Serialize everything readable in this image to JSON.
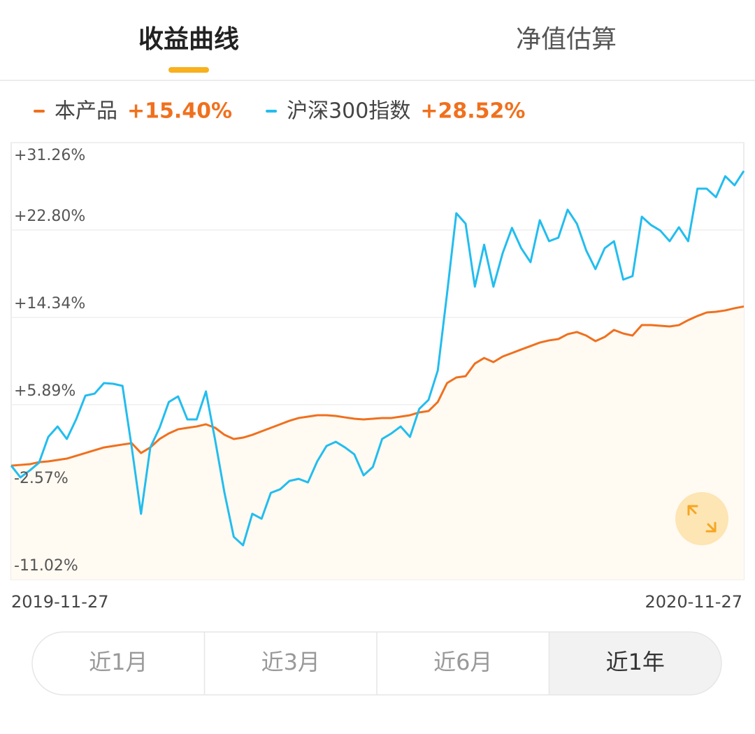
{
  "tabs": [
    {
      "label": "收益曲线",
      "active": true
    },
    {
      "label": "净值估算",
      "active": false
    }
  ],
  "chart_data": {
    "type": "line",
    "categories": [
      "2019-11-27",
      null,
      null,
      null,
      null,
      null,
      null,
      null,
      null,
      null,
      null,
      null,
      null,
      null,
      null,
      null,
      null,
      null,
      null,
      null,
      null,
      null,
      null,
      null,
      null,
      null,
      null,
      null,
      null,
      null,
      null,
      null,
      null,
      null,
      null,
      null,
      null,
      null,
      null,
      null,
      null,
      null,
      null,
      null,
      null,
      null,
      null,
      null,
      null,
      null,
      null,
      null,
      null,
      null,
      null,
      null,
      null,
      null,
      null,
      null,
      null,
      null,
      null,
      null,
      null,
      null,
      null,
      null,
      null,
      null,
      null,
      null,
      null,
      null,
      null,
      null,
      null,
      null,
      null,
      "2020-11-27"
    ],
    "series": [
      {
        "name": "本产品",
        "color": "#f0701e",
        "fill": "#fffaf2",
        "change_label": "+15.40%",
        "values": [
          0.0,
          0.07,
          0.14,
          0.34,
          0.41,
          0.55,
          0.68,
          0.95,
          1.22,
          1.49,
          1.76,
          1.9,
          2.04,
          2.17,
          1.22,
          1.76,
          2.58,
          3.12,
          3.52,
          3.66,
          3.79,
          4.0,
          3.66,
          2.98,
          2.58,
          2.71,
          2.98,
          3.32,
          3.66,
          4.0,
          4.34,
          4.61,
          4.74,
          4.88,
          4.88,
          4.81,
          4.67,
          4.54,
          4.47,
          4.54,
          4.61,
          4.61,
          4.74,
          4.88,
          5.15,
          5.28,
          6.16,
          7.99,
          8.53,
          8.66,
          9.88,
          10.42,
          10.02,
          10.56,
          10.9,
          11.24,
          11.57,
          11.91,
          12.12,
          12.25,
          12.72,
          12.93,
          12.59,
          12.05,
          12.45,
          13.13,
          12.79,
          12.59,
          13.6,
          13.6,
          13.54,
          13.47,
          13.6,
          14.08,
          14.48,
          14.82,
          14.89,
          15.02,
          15.23,
          15.4
        ]
      },
      {
        "name": "沪深300指数",
        "color": "#22bdef",
        "change_label": "+28.52%",
        "values": [
          0.0,
          -1.14,
          -0.47,
          0.28,
          2.78,
          3.79,
          2.58,
          4.47,
          6.77,
          6.97,
          7.99,
          7.92,
          7.72,
          1.76,
          -4.66,
          1.76,
          3.66,
          6.16,
          6.7,
          4.47,
          4.47,
          7.18,
          2.44,
          -2.63,
          -6.89,
          -7.71,
          -4.66,
          -5.14,
          -2.63,
          -2.29,
          -1.48,
          -1.28,
          -1.62,
          0.41,
          1.9,
          2.31,
          1.76,
          1.09,
          -0.94,
          -0.13,
          2.58,
          3.12,
          3.79,
          2.78,
          5.49,
          6.36,
          9.21,
          16.65,
          24.43,
          23.41,
          17.32,
          21.38,
          17.32,
          20.57,
          23.01,
          21.04,
          19.69,
          23.75,
          21.72,
          22.06,
          24.77,
          23.41,
          20.84,
          19.02,
          21.04,
          21.72,
          18.0,
          18.34,
          24.09,
          23.28,
          22.74,
          21.72,
          23.07,
          21.72,
          26.8,
          26.8,
          25.98,
          28.01,
          27.13,
          28.52
        ]
      }
    ],
    "ylim": [
      -11.02,
      31.26
    ],
    "yticks": [
      {
        "value": -11.02,
        "label": "-11.02%"
      },
      {
        "value": -2.57,
        "label": "-2.57%"
      },
      {
        "value": 5.89,
        "label": "+5.89%"
      },
      {
        "value": 14.34,
        "label": "+14.34%"
      },
      {
        "value": 22.8,
        "label": "+22.80%"
      },
      {
        "value": 31.26,
        "label": "+31.26%"
      }
    ],
    "grid": true
  },
  "range_buttons": [
    {
      "label": "近1月",
      "active": false
    },
    {
      "label": "近3月",
      "active": false
    },
    {
      "label": "近6月",
      "active": false
    },
    {
      "label": "近1年",
      "active": true
    }
  ]
}
